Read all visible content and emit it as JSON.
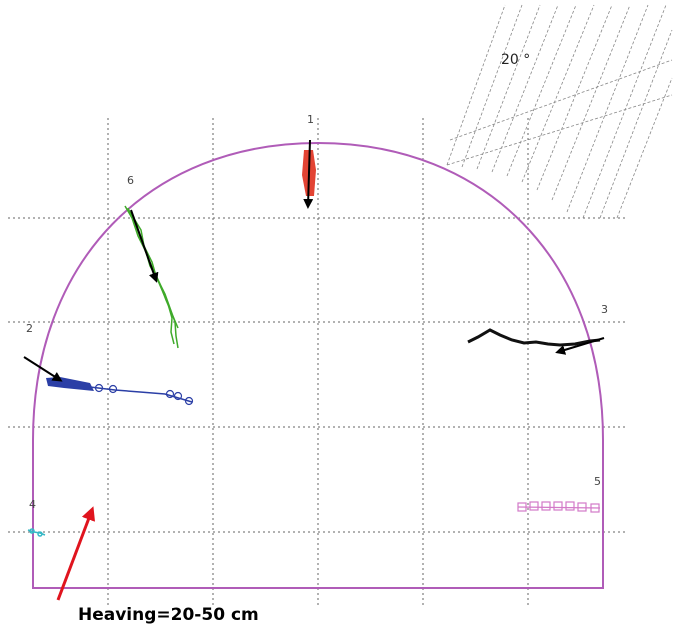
{
  "figure": {
    "caption": "Heaving=20-50 cm",
    "angle_label": "20 °",
    "points": [
      {
        "id": "1",
        "label": "1"
      },
      {
        "id": "2",
        "label": "2"
      },
      {
        "id": "3",
        "label": "3"
      },
      {
        "id": "4",
        "label": "4"
      },
      {
        "id": "5",
        "label": "5"
      },
      {
        "id": "6",
        "label": "6"
      }
    ],
    "colors": {
      "profile": "#b05cb8",
      "grid": "#666666",
      "hatch": "#888888",
      "point1": "#e0301e",
      "point2": "#2b3fa6",
      "point3": "#111111",
      "point4": "#36b8c6",
      "point5": "#d37ac8",
      "point6": "#3faa2a",
      "heave_arrow": "#e0141e",
      "trend_arrow": "#000000"
    }
  }
}
